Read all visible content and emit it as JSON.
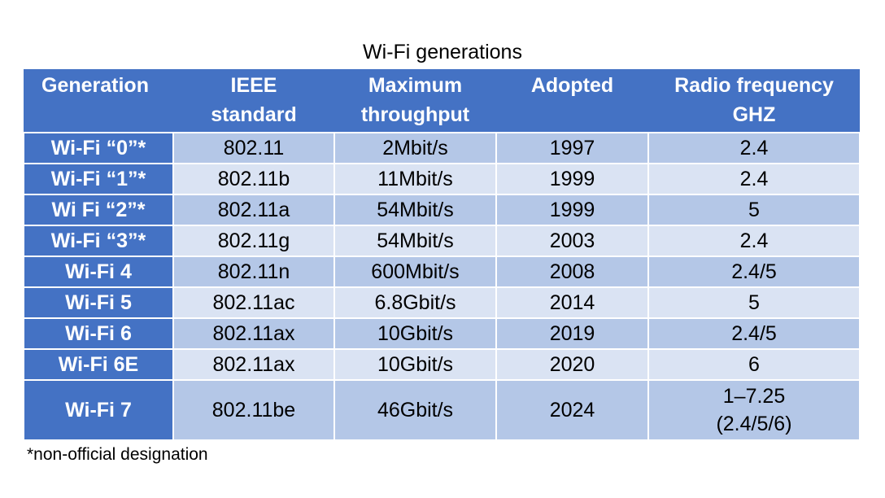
{
  "title": "Wi-Fi generations",
  "headers": {
    "generation": "Generation",
    "ieee_line1": "IEEE",
    "ieee_line2": "standard",
    "throughput_line1": "Maximum",
    "throughput_line2": "throughput",
    "adopted": "Adopted",
    "radio_line1": "Radio frequency",
    "radio_line2": "GHZ"
  },
  "rows": [
    {
      "generation": "Wi-Fi “0”*",
      "ieee": "802.11",
      "throughput": "2Mbit/s",
      "adopted": "1997",
      "radio": "2.4"
    },
    {
      "generation": "Wi-Fi “1”*",
      "ieee": "802.11b",
      "throughput": "11Mbit/s",
      "adopted": "1999",
      "radio": "2.4"
    },
    {
      "generation": "Wi Fi “2”*",
      "ieee": "802.11a",
      "throughput": "54Mbit/s",
      "adopted": "1999",
      "radio": "5"
    },
    {
      "generation": "Wi-Fi “3”*",
      "ieee": "802.11g",
      "throughput": "54Mbit/s",
      "adopted": "2003",
      "radio": "2.4"
    },
    {
      "generation": "Wi-Fi 4",
      "ieee": "802.11n",
      "throughput": "600Mbit/s",
      "adopted": "2008",
      "radio": "2.4/5"
    },
    {
      "generation": "Wi-Fi 5",
      "ieee": "802.11ac",
      "throughput": "6.8Gbit/s",
      "adopted": "2014",
      "radio": "5"
    },
    {
      "generation": "Wi-Fi 6",
      "ieee": "802.11ax",
      "throughput": "10Gbit/s",
      "adopted": "2019",
      "radio": "2.4/5"
    },
    {
      "generation": "Wi-Fi 6E",
      "ieee": "802.11ax",
      "throughput": "10Gbit/s",
      "adopted": "2020",
      "radio": "6"
    },
    {
      "generation": "Wi-Fi 7",
      "ieee": "802.11be",
      "throughput": "46Gbit/s",
      "adopted": "2024",
      "radio": "1–7.25",
      "radio_line2": "(2.4/5/6)"
    }
  ],
  "footnote": "*non-official designation",
  "colors": {
    "header_bg": "#4472c4",
    "row_dark": "#b4c7e7",
    "row_light": "#dae3f3"
  }
}
